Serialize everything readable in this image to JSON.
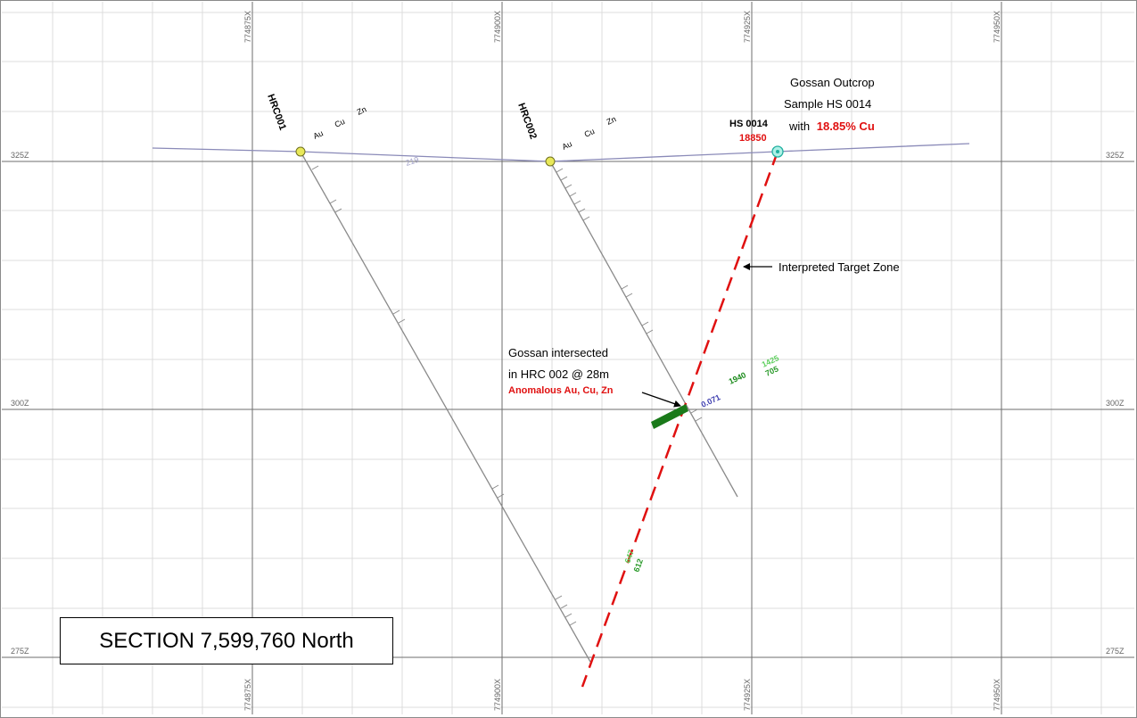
{
  "section_title": "SECTION 7,599,760 North",
  "grid": {
    "easting_labels": [
      "774875X",
      "774900X",
      "774925X",
      "774950X"
    ],
    "elevation_labels": [
      "325Z",
      "300Z",
      "275Z"
    ]
  },
  "drillholes": [
    {
      "name": "HRC001",
      "columns": [
        "Au",
        "Cu",
        "Zn"
      ]
    },
    {
      "name": "HRC002",
      "columns": [
        "Au",
        "Cu",
        "Zn"
      ]
    }
  ],
  "surface_label": "219",
  "sample": {
    "name": "HS 0014",
    "value": "18850"
  },
  "annotations": {
    "gossan_outcrop": [
      "Gossan Outcrop",
      "Sample HS 0014",
      "with "
    ],
    "gossan_outcrop_grade": "18.85% Cu",
    "target_zone": "Interpreted Target Zone",
    "gossan_intersect": [
      "Gossan intersected",
      "in HRC 002  @ 28m"
    ],
    "anomalous": "Anomalous Au, Cu, Zn"
  },
  "assays": {
    "intercept": [
      "0.071",
      "1940",
      "1425",
      "705"
    ],
    "deep": [
      "647",
      "612"
    ]
  },
  "colors": {
    "grid_major": "#6e6e6e",
    "grid_minor": "#dcdcdc",
    "hole_trace": "#8a8a8a",
    "surface": "#8a8ab8",
    "target_zone": "#e01010",
    "intercept": "#1a7a1a",
    "collar": "#e8e85a"
  }
}
